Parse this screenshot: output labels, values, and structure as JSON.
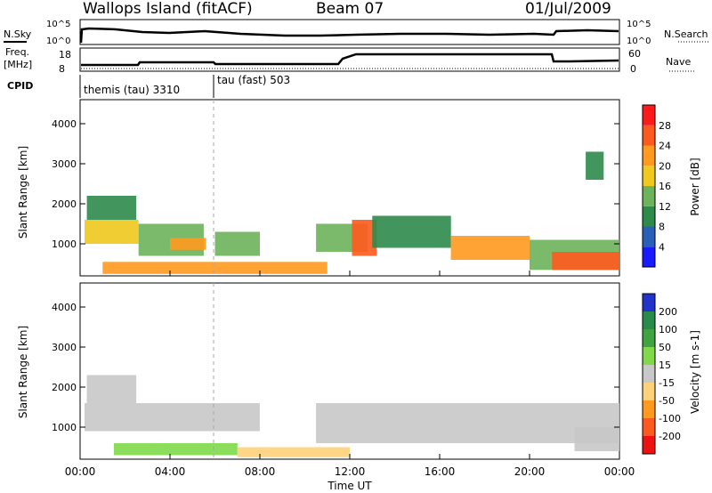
{
  "header": {
    "station": "Wallops Island (fitACF)",
    "beam": "Beam 07",
    "date": "01/Jul/2009"
  },
  "strip": {
    "nsky_label": "N.Sky",
    "nsearch_label": "N.Search",
    "freq_label_1": "Freq.",
    "freq_label_2": "[MHz]",
    "nave_label": "Nave",
    "cpid_label": "CPID",
    "noise_ticks": [
      "10^5",
      "10^0"
    ],
    "freq_ticks": [
      "18",
      "8"
    ],
    "nave_ticks": [
      "60",
      "0"
    ],
    "cpid_modes": [
      {
        "label": "themis (tau) 3310",
        "start_hour": 0
      },
      {
        "label": "tau (fast) 503",
        "start_hour": 6
      }
    ]
  },
  "chart_data": [
    {
      "type": "heatmap",
      "title": "",
      "quantity": "Power",
      "xlabel": "Time UT",
      "ylabel": "Slant Range [km]",
      "xlim_hours": [
        0,
        24
      ],
      "ylim_km": [
        200,
        4600
      ],
      "x_ticks": [
        "00:00",
        "04:00",
        "08:00",
        "12:00",
        "16:00",
        "20:00",
        "00:00"
      ],
      "y_ticks": [
        1000,
        2000,
        3000,
        4000
      ],
      "colorbar": {
        "label": "Power [dB]",
        "ticks": [
          4,
          8,
          12,
          16,
          20,
          24,
          28
        ],
        "colors": [
          "#1a1aff",
          "#2a5fb8",
          "#2e8a4a",
          "#6cb35a",
          "#f0c81e",
          "#ff9a1e",
          "#ff5a1e",
          "#ff1a1a"
        ]
      },
      "regions": [
        {
          "t0": 0.2,
          "t1": 2.6,
          "r0": 1000,
          "r1": 1600,
          "value": 16
        },
        {
          "t0": 0.3,
          "t1": 2.5,
          "r0": 1600,
          "r1": 2200,
          "value": 10
        },
        {
          "t0": 2.6,
          "t1": 5.5,
          "r0": 700,
          "r1": 1500,
          "value": 12
        },
        {
          "t0": 4.0,
          "t1": 5.6,
          "r0": 850,
          "r1": 1150,
          "value": 22
        },
        {
          "t0": 6.0,
          "t1": 8.0,
          "r0": 700,
          "r1": 1300,
          "value": 14
        },
        {
          "t0": 1.0,
          "t1": 11.0,
          "r0": 250,
          "r1": 550,
          "value": 20
        },
        {
          "t0": 10.5,
          "t1": 12.8,
          "r0": 800,
          "r1": 1500,
          "value": 12
        },
        {
          "t0": 12.1,
          "t1": 13.2,
          "r0": 700,
          "r1": 1600,
          "value": 27
        },
        {
          "t0": 13.0,
          "t1": 16.5,
          "r0": 900,
          "r1": 1700,
          "value": 10
        },
        {
          "t0": 16.5,
          "t1": 20.0,
          "r0": 600,
          "r1": 1200,
          "value": 23
        },
        {
          "t0": 20.0,
          "t1": 24.0,
          "r0": 350,
          "r1": 1100,
          "value": 14
        },
        {
          "t0": 21.0,
          "t1": 24.0,
          "r0": 350,
          "r1": 800,
          "value": 25
        },
        {
          "t0": 22.5,
          "t1": 23.3,
          "r0": 2600,
          "r1": 3300,
          "value": 8
        }
      ]
    },
    {
      "type": "heatmap",
      "title": "",
      "quantity": "Velocity",
      "xlabel": "Time UT",
      "ylabel": "Slant Range [km]",
      "xlim_hours": [
        0,
        24
      ],
      "ylim_km": [
        200,
        4600
      ],
      "x_ticks": [
        "00:00",
        "04:00",
        "08:00",
        "12:00",
        "16:00",
        "20:00",
        "00:00"
      ],
      "y_ticks": [
        1000,
        2000,
        3000,
        4000
      ],
      "colorbar": {
        "label": "Velocity [m s-1]",
        "ticks": [
          200,
          100,
          50,
          15,
          -15,
          -50,
          -100,
          -200
        ],
        "colors": [
          "#2233cc",
          "#2a8a4a",
          "#3fa33f",
          "#7fd94a",
          "#c8c8c8",
          "#ffd27a",
          "#ff9a1e",
          "#ff5a1e",
          "#ee1111"
        ]
      },
      "regions": [
        {
          "t0": 0.2,
          "t1": 8.0,
          "r0": 900,
          "r1": 1600,
          "value": 0
        },
        {
          "t0": 0.3,
          "t1": 2.5,
          "r0": 1600,
          "r1": 2300,
          "value": 0
        },
        {
          "t0": 1.5,
          "t1": 7.0,
          "r0": 300,
          "r1": 600,
          "value": 30
        },
        {
          "t0": 7.0,
          "t1": 12.0,
          "r0": 250,
          "r1": 500,
          "value": -40
        },
        {
          "t0": 10.5,
          "t1": 24.0,
          "r0": 600,
          "r1": 1600,
          "value": 0
        },
        {
          "t0": 22.0,
          "t1": 24.0,
          "r0": 400,
          "r1": 1000,
          "value": 0
        }
      ]
    }
  ]
}
